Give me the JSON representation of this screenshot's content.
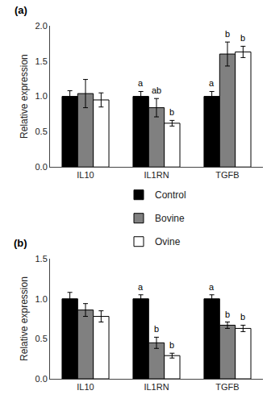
{
  "chart_data": [
    {
      "type": "bar",
      "title": "(a)",
      "categories": [
        "IL10",
        "IL1RN",
        "TGFB"
      ],
      "series": [
        {
          "name": "Control",
          "color": "#000000",
          "values": [
            1.0,
            1.0,
            1.0
          ],
          "errors": [
            0.08,
            0.07,
            0.07
          ],
          "annotations": [
            null,
            "a",
            "a"
          ]
        },
        {
          "name": "Bovine",
          "color": "#808080",
          "values": [
            1.04,
            0.84,
            1.6
          ],
          "errors": [
            0.2,
            0.13,
            0.17
          ],
          "annotations": [
            null,
            "ab",
            "b"
          ]
        },
        {
          "name": "Ovine",
          "color": "#ffffff",
          "values": [
            0.95,
            0.62,
            1.63
          ],
          "errors": [
            0.1,
            0.04,
            0.08
          ],
          "annotations": [
            null,
            "b",
            "b"
          ]
        }
      ],
      "ylabel": "Relative expression",
      "ylim": [
        0.0,
        2.0
      ],
      "yticks": [
        {
          "value": 0.0,
          "label": "0.0"
        },
        0.5,
        {
          "value": 1.0,
          "label": "1.0"
        },
        1.5,
        {
          "value": 2.0,
          "label": "2.0"
        }
      ],
      "grid": false,
      "legend": "center"
    },
    {
      "type": "bar",
      "title": "(b)",
      "categories": [
        "IL10",
        "IL1RN",
        "TGFB"
      ],
      "series": [
        {
          "name": "Control",
          "color": "#000000",
          "values": [
            1.0,
            1.0,
            1.0
          ],
          "errors": [
            0.08,
            0.05,
            0.05
          ],
          "annotations": [
            null,
            "a",
            "a"
          ]
        },
        {
          "name": "Bovine",
          "color": "#808080",
          "values": [
            0.86,
            0.45,
            0.67
          ],
          "errors": [
            0.08,
            0.07,
            0.04
          ],
          "annotations": [
            null,
            "b",
            "b"
          ]
        },
        {
          "name": "Ovine",
          "color": "#ffffff",
          "values": [
            0.78,
            0.29,
            0.63
          ],
          "errors": [
            0.07,
            0.03,
            0.04
          ],
          "annotations": [
            null,
            "b",
            "b"
          ]
        }
      ],
      "ylabel": "Relative expression",
      "ylim": [
        0.0,
        1.5
      ],
      "yticks": [
        {
          "value": 0.0,
          "label": "0.0"
        },
        0.5,
        {
          "value": 1.0,
          "label": "1.0"
        },
        1.5
      ],
      "grid": false
    }
  ]
}
